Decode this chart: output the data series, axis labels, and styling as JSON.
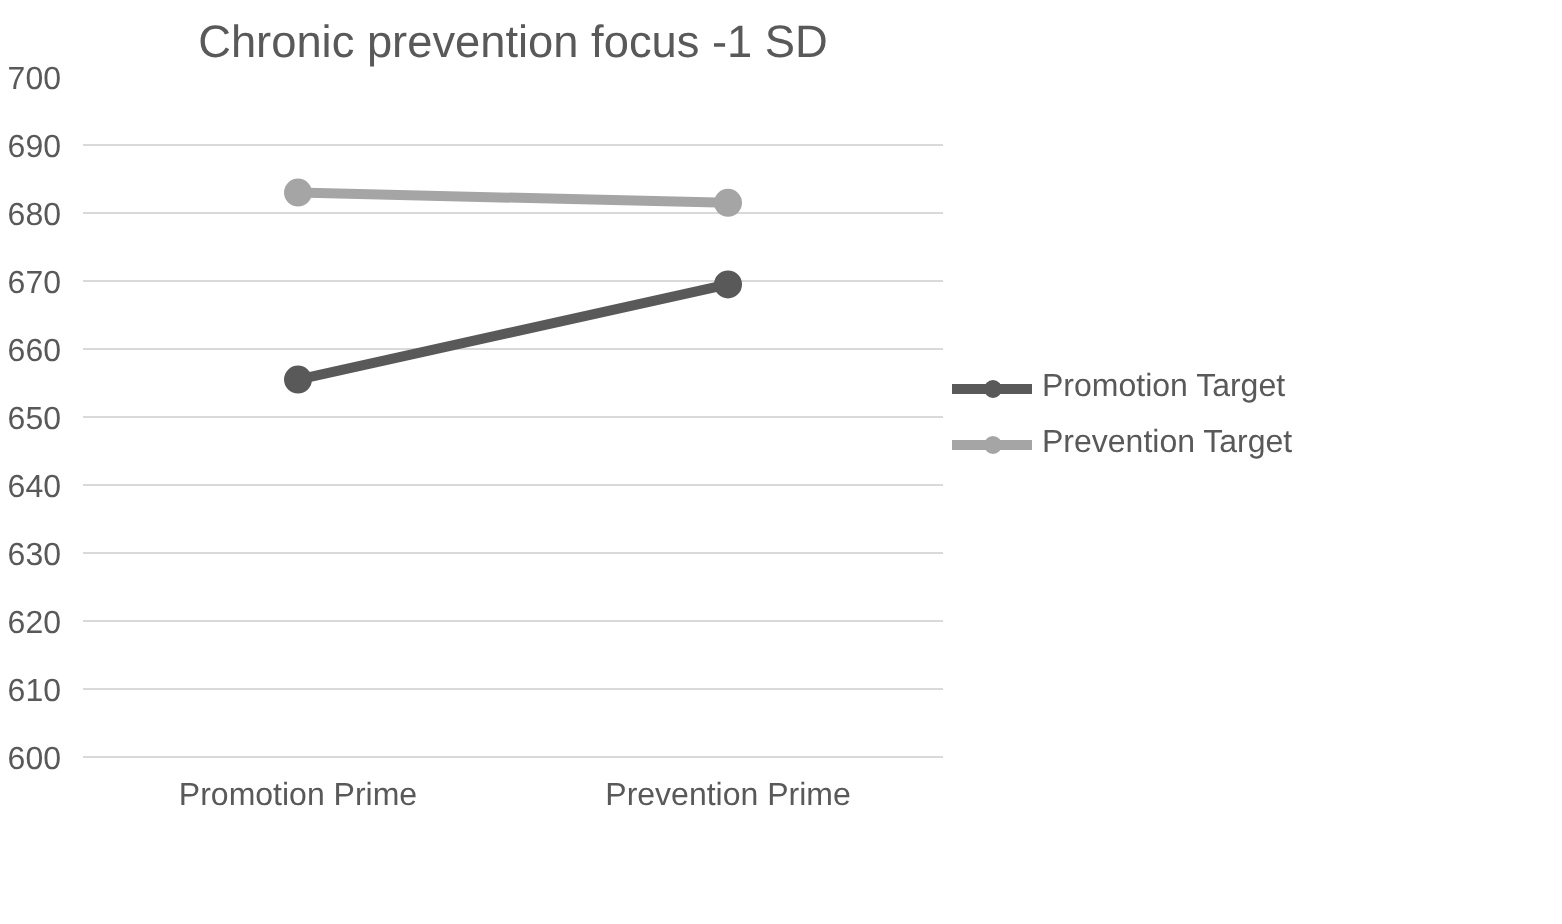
{
  "chart_data": {
    "type": "line",
    "title": "Chronic prevention focus -1 SD",
    "categories": [
      "Promotion Prime",
      "Prevention Prime"
    ],
    "series": [
      {
        "name": "Promotion Target",
        "color": "#595959",
        "values": [
          655.5,
          669.5
        ]
      },
      {
        "name": "Prevention Target",
        "color": "#a5a5a5",
        "values": [
          683,
          681.5
        ]
      }
    ],
    "ylim": [
      600,
      700
    ],
    "yticks": [
      600,
      610,
      620,
      630,
      640,
      650,
      660,
      670,
      680,
      690,
      700
    ],
    "grid": "y",
    "legend": "right",
    "marker": "circle",
    "line_style": "solid"
  }
}
